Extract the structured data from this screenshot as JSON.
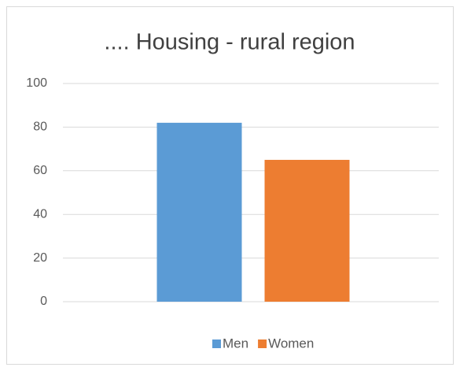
{
  "chart_data": {
    "type": "bar",
    "title": ".... Housing - rural region",
    "categories": [
      null
    ],
    "series": [
      {
        "name": "Men",
        "color": "#5b9bd5",
        "values": [
          82
        ]
      },
      {
        "name": "Women",
        "color": "#ed7d31",
        "values": [
          65
        ]
      }
    ],
    "ylim": [
      0,
      100
    ],
    "yticks": [
      0,
      20,
      40,
      60,
      80,
      100
    ],
    "grid": true,
    "legend": "bottom"
  }
}
